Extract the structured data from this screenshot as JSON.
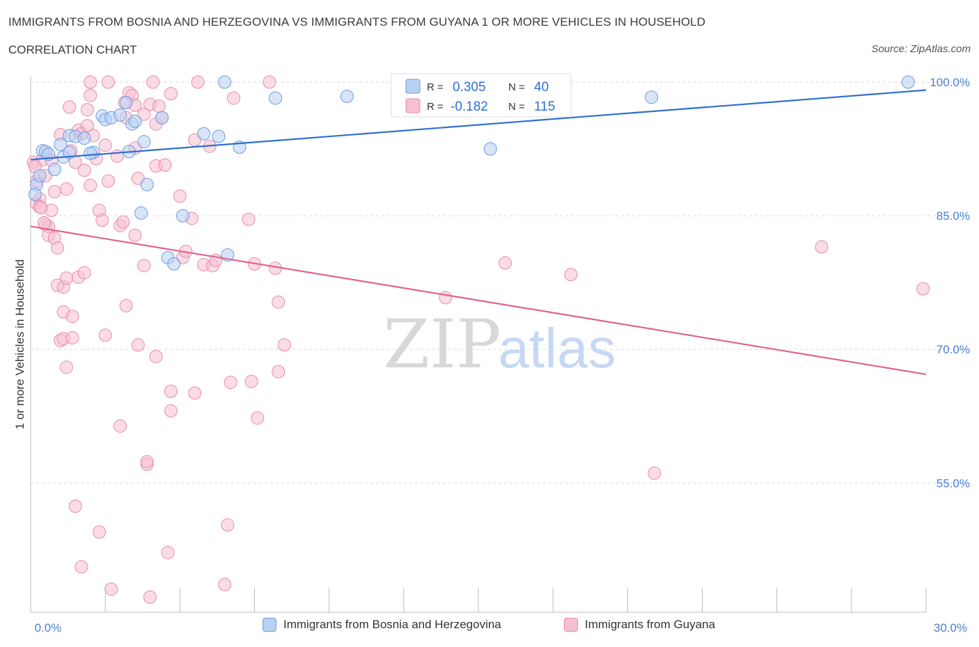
{
  "header": {
    "title": "IMMIGRANTS FROM BOSNIA AND HERZEGOVINA VS IMMIGRANTS FROM GUYANA 1 OR MORE VEHICLES IN HOUSEHOLD",
    "subtitle": "CORRELATION CHART",
    "source": "Source: ZipAtlas.com"
  },
  "watermark": {
    "zip": "ZIP",
    "atlas": "atlas"
  },
  "legend": {
    "r_label": "R =",
    "n_label": "N =",
    "series": [
      {
        "r": "0.305",
        "n": "40"
      },
      {
        "r": "-0.182",
        "n": "115"
      }
    ]
  },
  "colors": {
    "blue_fill": "#b8d0f4",
    "blue_stroke": "#6b9be0",
    "blue_line": "#2e6fd0",
    "pink_fill": "#f7c0d2",
    "pink_stroke": "#e88aa8",
    "pink_line": "#e0628f",
    "grid": "#d9d9d9",
    "tick_text": "#4a7fd0"
  },
  "chart_data": {
    "type": "scatter",
    "title": "IMMIGRANTS FROM BOSNIA AND HERZEGOVINA VS IMMIGRANTS FROM GUYANA 1 OR MORE VEHICLES IN HOUSEHOLD",
    "xlabel": "",
    "ylabel": "1 or more Vehicles in Household",
    "xlim": [
      0,
      30
    ],
    "ylim": [
      40.5,
      100
    ],
    "x_tick_labels": [
      "0.0%",
      "30.0%"
    ],
    "y_ticks": [
      100,
      85,
      70,
      55
    ],
    "y_tick_labels": [
      "100.0%",
      "85.0%",
      "70.0%",
      "55.0%"
    ],
    "grid": true,
    "legend_position": "top-center",
    "series": [
      {
        "name": "Immigrants from Bosnia and Herzegovina",
        "color": "#6b9be0",
        "trend": {
          "x": [
            0,
            30
          ],
          "y": [
            91.3,
            99.1
          ]
        },
        "points": [
          [
            0.2,
            88.5
          ],
          [
            0.3,
            89.5
          ],
          [
            0.4,
            92.3
          ],
          [
            0.5,
            92.2
          ],
          [
            0.6,
            91.9
          ],
          [
            0.8,
            90.2
          ],
          [
            1.0,
            93.0
          ],
          [
            1.1,
            91.6
          ],
          [
            1.3,
            94.0
          ],
          [
            1.3,
            92.1
          ],
          [
            1.5,
            93.9
          ],
          [
            1.8,
            93.7
          ],
          [
            2.1,
            92.1
          ],
          [
            2.4,
            96.2
          ],
          [
            2.5,
            95.8
          ],
          [
            2.7,
            96.0
          ],
          [
            3.0,
            96.3
          ],
          [
            3.2,
            97.7
          ],
          [
            3.3,
            92.2
          ],
          [
            3.4,
            95.3
          ],
          [
            3.5,
            95.6
          ],
          [
            3.7,
            85.3
          ],
          [
            3.8,
            93.3
          ],
          [
            3.9,
            88.5
          ],
          [
            4.4,
            96.0
          ],
          [
            4.6,
            80.3
          ],
          [
            4.8,
            79.6
          ],
          [
            5.1,
            85.0
          ],
          [
            5.8,
            94.2
          ],
          [
            6.3,
            93.9
          ],
          [
            6.5,
            100.0
          ],
          [
            6.6,
            80.6
          ],
          [
            7.0,
            92.7
          ],
          [
            8.2,
            98.2
          ],
          [
            10.6,
            98.4
          ],
          [
            15.4,
            92.5
          ],
          [
            20.8,
            98.3
          ],
          [
            29.4,
            100.0
          ],
          [
            0.15,
            87.4
          ],
          [
            2.0,
            92.0
          ]
        ]
      },
      {
        "name": "Immigrants from Guyana",
        "color": "#e88aa8",
        "trend": {
          "x": [
            0,
            30
          ],
          "y": [
            83.8,
            67.2
          ]
        },
        "points": [
          [
            0.1,
            91.0
          ],
          [
            0.2,
            88.9
          ],
          [
            0.2,
            86.4
          ],
          [
            0.3,
            86.9
          ],
          [
            0.3,
            86.0
          ],
          [
            0.4,
            91.3
          ],
          [
            0.5,
            89.5
          ],
          [
            0.5,
            84.0
          ],
          [
            0.6,
            83.8
          ],
          [
            0.6,
            82.8
          ],
          [
            0.7,
            85.6
          ],
          [
            0.7,
            91.2
          ],
          [
            0.8,
            87.7
          ],
          [
            0.8,
            82.5
          ],
          [
            0.9,
            81.4
          ],
          [
            0.9,
            77.2
          ],
          [
            1.0,
            94.1
          ],
          [
            1.0,
            71.0
          ],
          [
            1.1,
            77.0
          ],
          [
            1.1,
            74.2
          ],
          [
            1.1,
            71.2
          ],
          [
            1.2,
            78.0
          ],
          [
            1.2,
            68.0
          ],
          [
            1.2,
            88.0
          ],
          [
            1.3,
            97.2
          ],
          [
            1.4,
            73.7
          ],
          [
            1.4,
            71.3
          ],
          [
            1.5,
            91.0
          ],
          [
            1.5,
            52.4
          ],
          [
            1.6,
            94.6
          ],
          [
            1.6,
            78.1
          ],
          [
            1.7,
            94.2
          ],
          [
            1.7,
            45.6
          ],
          [
            1.8,
            90.1
          ],
          [
            1.8,
            78.6
          ],
          [
            1.9,
            96.9
          ],
          [
            1.9,
            95.1
          ],
          [
            2.0,
            98.5
          ],
          [
            2.0,
            100.0
          ],
          [
            2.0,
            88.4
          ],
          [
            2.1,
            94.0
          ],
          [
            2.3,
            85.6
          ],
          [
            2.3,
            49.5
          ],
          [
            2.4,
            84.5
          ],
          [
            2.5,
            92.9
          ],
          [
            2.5,
            71.6
          ],
          [
            2.6,
            100.0
          ],
          [
            2.6,
            88.9
          ],
          [
            2.7,
            43.1
          ],
          [
            2.9,
            91.7
          ],
          [
            3.0,
            83.9
          ],
          [
            3.0,
            61.4
          ],
          [
            3.1,
            84.3
          ],
          [
            3.2,
            96.0
          ],
          [
            3.2,
            74.9
          ],
          [
            3.3,
            98.8
          ],
          [
            3.4,
            98.5
          ],
          [
            3.5,
            92.6
          ],
          [
            3.5,
            97.4
          ],
          [
            3.5,
            82.8
          ],
          [
            3.6,
            70.5
          ],
          [
            3.6,
            89.2
          ],
          [
            3.8,
            96.4
          ],
          [
            3.8,
            79.4
          ],
          [
            3.9,
            57.1
          ],
          [
            3.9,
            57.4
          ],
          [
            4.0,
            97.5
          ],
          [
            4.0,
            42.2
          ],
          [
            4.1,
            100.0
          ],
          [
            4.2,
            95.3
          ],
          [
            4.2,
            90.6
          ],
          [
            4.2,
            69.2
          ],
          [
            4.4,
            96.0
          ],
          [
            4.5,
            90.7
          ],
          [
            4.6,
            47.2
          ],
          [
            4.7,
            65.3
          ],
          [
            4.7,
            63.1
          ],
          [
            4.7,
            98.7
          ],
          [
            5.0,
            87.2
          ],
          [
            5.1,
            80.3
          ],
          [
            5.2,
            81.0
          ],
          [
            5.4,
            84.7
          ],
          [
            5.5,
            65.1
          ],
          [
            5.5,
            93.5
          ],
          [
            5.6,
            100.0
          ],
          [
            5.8,
            79.5
          ],
          [
            6.0,
            92.8
          ],
          [
            6.1,
            79.4
          ],
          [
            6.2,
            80.0
          ],
          [
            6.5,
            43.6
          ],
          [
            6.6,
            50.3
          ],
          [
            6.7,
            66.3
          ],
          [
            6.8,
            98.2
          ],
          [
            7.3,
            84.6
          ],
          [
            7.4,
            66.4
          ],
          [
            7.5,
            79.6
          ],
          [
            7.6,
            62.3
          ],
          [
            8.0,
            100.0
          ],
          [
            8.2,
            79.1
          ],
          [
            8.3,
            67.5
          ],
          [
            8.3,
            75.3
          ],
          [
            8.5,
            70.5
          ],
          [
            13.9,
            75.8
          ],
          [
            15.9,
            79.7
          ],
          [
            18.1,
            78.4
          ],
          [
            20.9,
            56.1
          ],
          [
            26.5,
            81.5
          ],
          [
            29.9,
            76.8
          ],
          [
            0.15,
            90.5
          ],
          [
            0.35,
            85.9
          ],
          [
            0.45,
            84.2
          ],
          [
            1.35,
            92.3
          ],
          [
            2.2,
            91.4
          ],
          [
            3.15,
            97.7
          ],
          [
            4.3,
            97.3
          ]
        ]
      }
    ]
  }
}
